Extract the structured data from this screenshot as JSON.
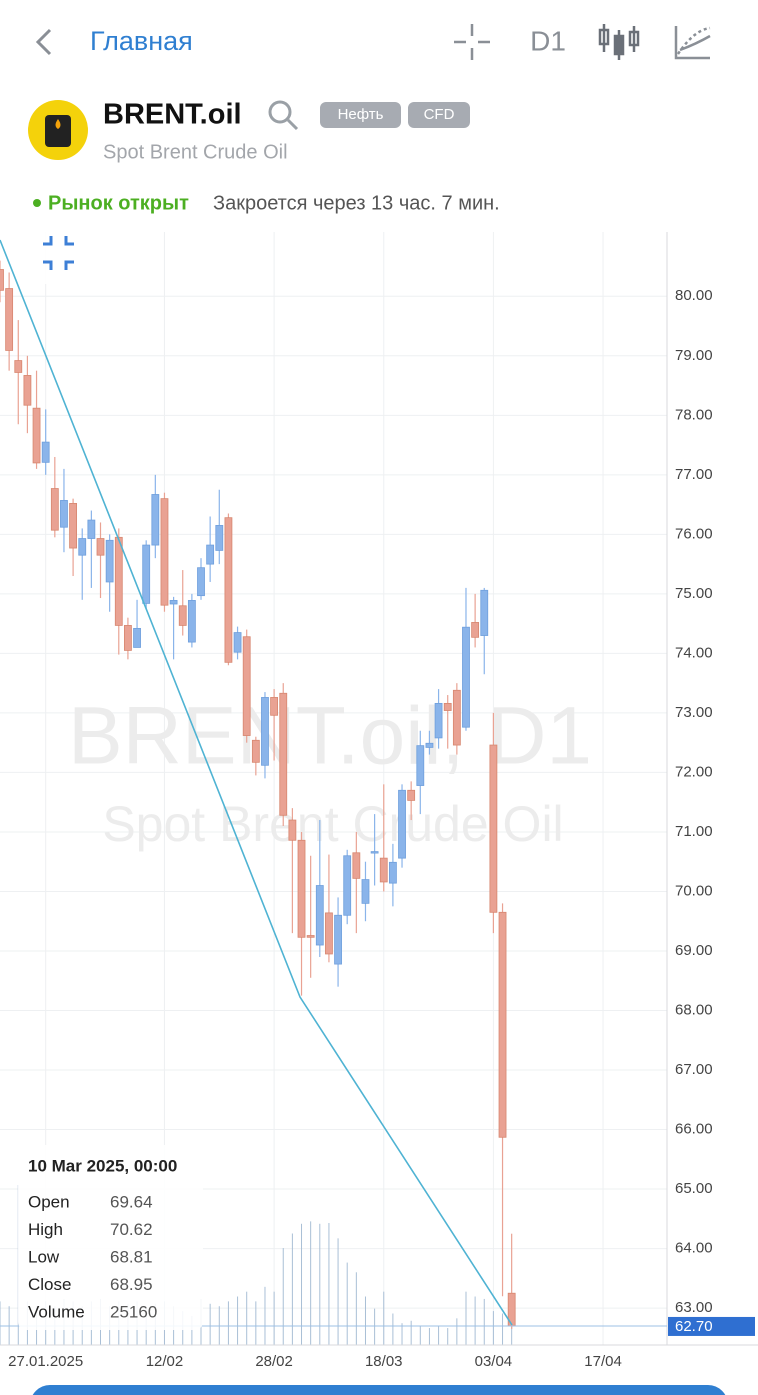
{
  "header": {
    "back_label": "Главная",
    "timeframe": "D1"
  },
  "instrument": {
    "symbol": "BRENT.oil",
    "subtitle": "Spot Brent Crude Oil",
    "tags": [
      "Нефть",
      "CFD"
    ]
  },
  "market": {
    "status": "Рынок открыт",
    "closes_in": "Закроется через 13 час. 7 мин."
  },
  "chart_data": {
    "type": "candlestick",
    "watermark": "BRENT.oil, D1",
    "up_color": "#8ab4ea",
    "down_color": "#e9a293",
    "ylim": [
      62.38,
      81.08
    ],
    "yticks": [
      {
        "value": 63,
        "label": "63.00"
      },
      {
        "value": 64,
        "label": "64.00"
      },
      {
        "value": 65,
        "label": "65.00"
      },
      {
        "value": 66,
        "label": "66.00"
      },
      {
        "value": 67,
        "label": "67.00"
      },
      {
        "value": 68,
        "label": "68.00"
      },
      {
        "value": 69,
        "label": "69.00"
      },
      {
        "value": 70,
        "label": "70.00"
      },
      {
        "value": 71,
        "label": "71.00"
      },
      {
        "value": 72,
        "label": "72.00"
      },
      {
        "value": 73,
        "label": "73.00"
      },
      {
        "value": 74,
        "label": "74.00"
      },
      {
        "value": 75,
        "label": "75.00"
      },
      {
        "value": 76,
        "label": "76.00"
      },
      {
        "value": 77,
        "label": "77.00"
      },
      {
        "value": 78,
        "label": "78.00"
      },
      {
        "value": 79,
        "label": "79.00"
      },
      {
        "value": 80,
        "label": "80.00"
      }
    ],
    "xlim": [
      0,
      73
    ],
    "xticks": [
      {
        "value": 5,
        "label": "27.01.2025"
      },
      {
        "value": 18,
        "label": "12/02"
      },
      {
        "value": 30,
        "label": "28/02"
      },
      {
        "value": 42,
        "label": "18/03"
      },
      {
        "value": 54,
        "label": "03/04"
      },
      {
        "value": 66,
        "label": "17/04"
      }
    ],
    "grid": true,
    "last_price": {
      "value": 62.7,
      "label": "62.70"
    },
    "open": [
      80.45,
      80.13,
      78.92,
      78.67,
      78.12,
      77.21,
      76.77,
      76.12,
      76.52,
      75.65,
      75.93,
      75.93,
      75.2,
      75.95,
      74.47,
      74.1,
      74.84,
      75.82,
      76.6,
      74.83,
      74.8,
      74.19,
      74.97,
      75.5,
      75.73,
      76.28,
      74.02,
      74.28,
      72.54,
      72.12,
      73.26,
      73.33,
      71.2,
      70.86,
      69.26,
      69.1,
      69.64,
      68.78,
      69.6,
      70.65,
      69.8,
      70.67,
      70.56,
      70.14,
      70.56,
      71.7,
      71.78,
      72.42,
      72.58,
      73.16,
      73.38,
      72.76,
      74.52,
      74.3,
      72.46,
      69.65,
      63.25
    ],
    "high": [
      80.6,
      80.4,
      79.6,
      79.0,
      78.75,
      78.1,
      77.3,
      77.1,
      76.6,
      76.1,
      76.4,
      76.2,
      76.0,
      76.1,
      74.6,
      74.9,
      75.9,
      77.0,
      76.7,
      74.95,
      75.4,
      75.0,
      75.6,
      76.3,
      76.75,
      76.35,
      74.45,
      74.4,
      72.6,
      73.35,
      73.4,
      73.5,
      71.4,
      71.0,
      70.6,
      71.2,
      70.62,
      69.9,
      70.7,
      71.0,
      70.5,
      71.3,
      71.8,
      70.8,
      71.8,
      71.85,
      72.7,
      72.7,
      73.4,
      73.3,
      73.5,
      75.1,
      75.0,
      75.1,
      73.0,
      69.8,
      64.25
    ],
    "low": [
      79.9,
      78.75,
      77.85,
      77.7,
      77.1,
      77.0,
      75.95,
      75.7,
      75.3,
      74.9,
      75.1,
      74.93,
      74.7,
      73.98,
      73.9,
      74.1,
      74.75,
      75.6,
      74.7,
      73.9,
      74.3,
      74.1,
      74.9,
      75.2,
      75.5,
      73.8,
      73.9,
      72.5,
      71.95,
      71.9,
      72.2,
      71.1,
      69.3,
      68.25,
      68.55,
      68.9,
      68.81,
      68.4,
      69.45,
      69.3,
      69.5,
      70.1,
      70.0,
      69.75,
      70.4,
      71.2,
      71.3,
      72.3,
      72.4,
      72.4,
      72.3,
      72.7,
      74.1,
      73.65,
      69.3,
      63.2,
      62.65
    ],
    "close": [
      80.1,
      79.09,
      78.72,
      78.17,
      77.2,
      77.55,
      76.07,
      76.57,
      75.77,
      75.93,
      76.24,
      75.65,
      75.9,
      74.47,
      74.05,
      74.42,
      75.82,
      76.67,
      74.81,
      74.89,
      74.47,
      74.89,
      75.44,
      75.82,
      76.15,
      73.85,
      74.35,
      72.62,
      72.17,
      73.26,
      72.96,
      71.28,
      70.86,
      69.23,
      69.23,
      70.1,
      68.95,
      69.6,
      70.6,
      70.22,
      70.2,
      70.67,
      70.16,
      70.49,
      71.7,
      71.53,
      72.45,
      72.49,
      73.16,
      73.04,
      72.46,
      74.44,
      74.27,
      75.06,
      69.65,
      65.87,
      62.7
    ],
    "volume": [
      9000,
      8000,
      33000,
      9000,
      8000,
      9000,
      8000,
      9500,
      9000,
      8000,
      9000,
      9500,
      8000,
      9000,
      8500,
      9000,
      8000,
      8500,
      9000,
      8000,
      7000,
      6000,
      9500,
      8500,
      8000,
      9000,
      10000,
      11000,
      9000,
      12000,
      11000,
      20000,
      23000,
      25000,
      25500,
      25000,
      25160,
      22000,
      17000,
      15000,
      10000,
      7500,
      11000,
      6500,
      4500,
      5000,
      4000,
      3500,
      4000,
      3500,
      5500,
      11000,
      10000,
      9500,
      7000,
      6500,
      6000
    ]
  },
  "tooltip": {
    "date": "10 Mar 2025, 00:00",
    "labels": [
      "Open",
      "High",
      "Low",
      "Close",
      "Volume"
    ]
  }
}
